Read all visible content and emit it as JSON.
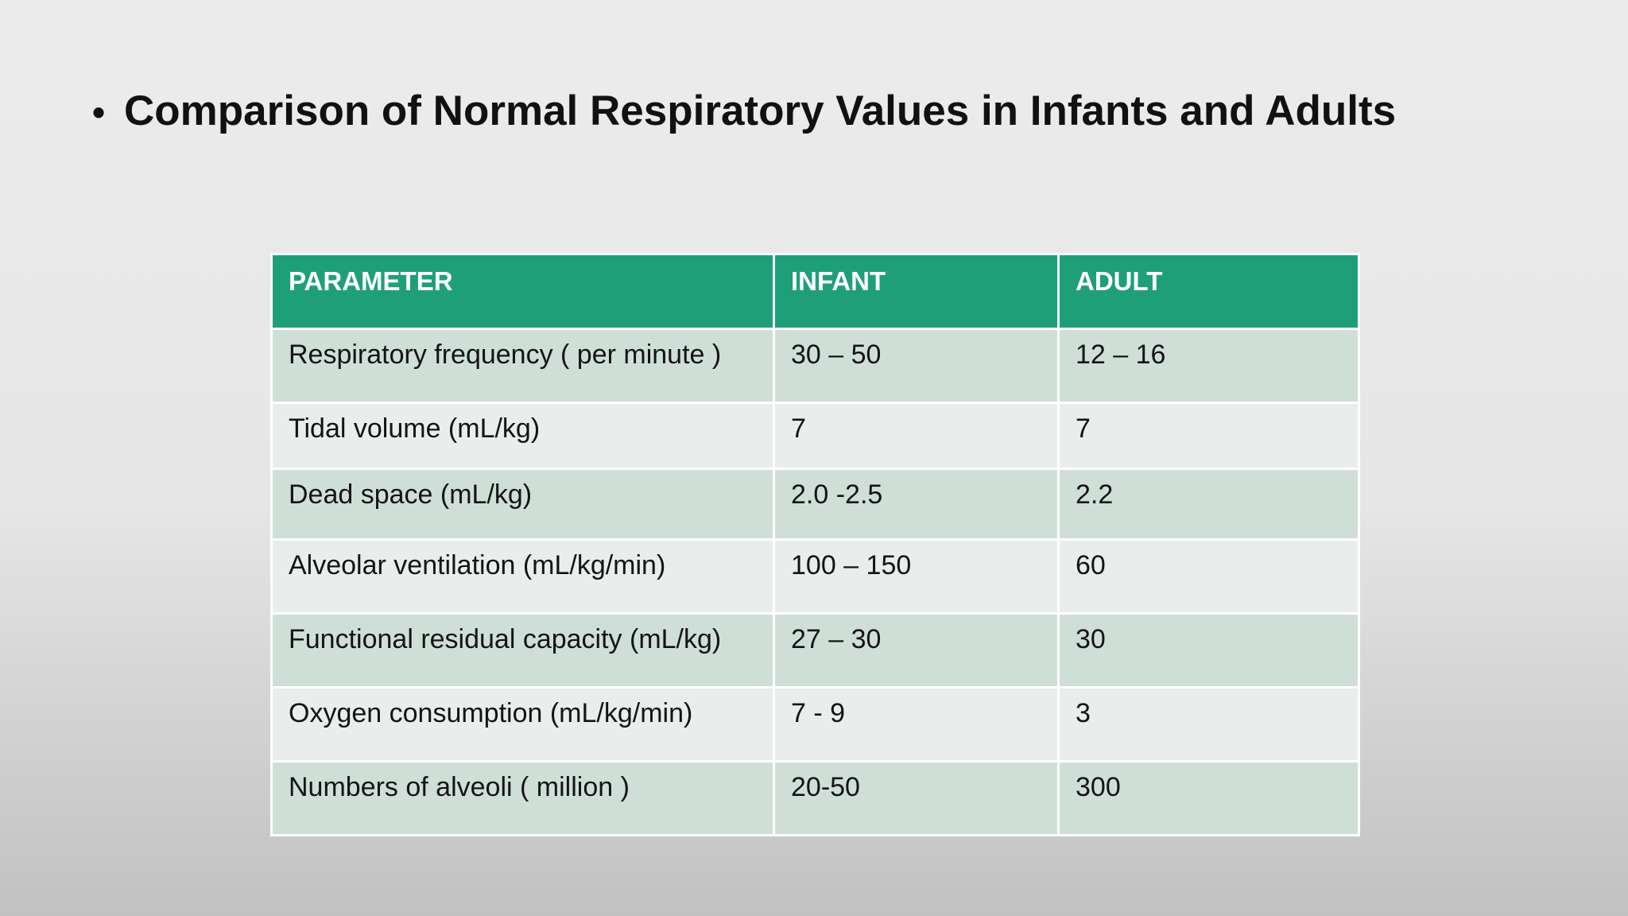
{
  "title": {
    "bullet": "•",
    "text": "Comparison of Normal Respiratory Values in Infants and Adults"
  },
  "table": {
    "headers": [
      "PARAMETER",
      "INFANT",
      "ADULT"
    ],
    "rows": [
      [
        "Respiratory frequency ( per minute )",
        "30 – 50",
        "12 – 16"
      ],
      [
        "Tidal volume (mL/kg)",
        "7",
        "7"
      ],
      [
        "Dead space (mL/kg)",
        "2.0 -2.5",
        "2.2"
      ],
      [
        "Alveolar ventilation (mL/kg/min)",
        "100 – 150",
        "60"
      ],
      [
        "Functional residual capacity (mL/kg)",
        "27 – 30",
        "30"
      ],
      [
        "Oxygen consumption (mL/kg/min)",
        "7 - 9",
        "3"
      ],
      [
        "Numbers of alveoli ( million )",
        "20-50",
        "300"
      ]
    ]
  },
  "colors": {
    "header_background": "#1f9f78",
    "row_band_dark": "#cfdfd8",
    "row_band_light": "#e9eeec"
  }
}
